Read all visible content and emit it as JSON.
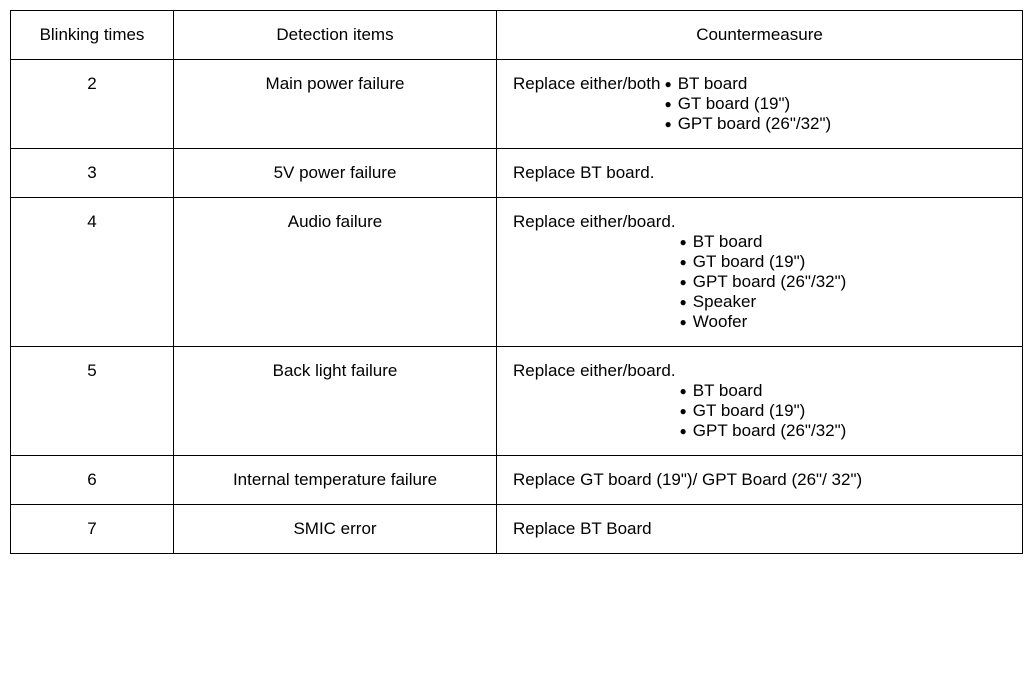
{
  "table": {
    "headers": {
      "blink": "Blinking times",
      "detect": "Detection items",
      "counter": "Countermeasure"
    },
    "rows": [
      {
        "blink": "2",
        "detect": "Main power failure",
        "lead": "Replace either/both",
        "items": [
          "BT board",
          "GT board (19\")",
          "GPT board (26\"/32\")"
        ]
      },
      {
        "blink": "3",
        "detect": "5V power failure",
        "plain": "Replace BT board."
      },
      {
        "blink": "4",
        "detect": "Audio failure",
        "lead": "Replace either/board.",
        "lead_block": true,
        "items": [
          "BT board",
          "GT board (19\")",
          "GPT board (26\"/32\")",
          "Speaker",
          "Woofer"
        ]
      },
      {
        "blink": "5",
        "detect": "Back light failure",
        "lead": "Replace either/board.",
        "lead_block": true,
        "items": [
          "BT board",
          "GT board (19\")",
          "GPT board (26\"/32\")"
        ]
      },
      {
        "blink": "6",
        "detect": "Internal temperature failure",
        "plain": "Replace GT board (19\")/ GPT Board (26\"/ 32\")"
      },
      {
        "blink": "7",
        "detect": "SMIC error",
        "plain": "Replace BT Board"
      }
    ]
  }
}
